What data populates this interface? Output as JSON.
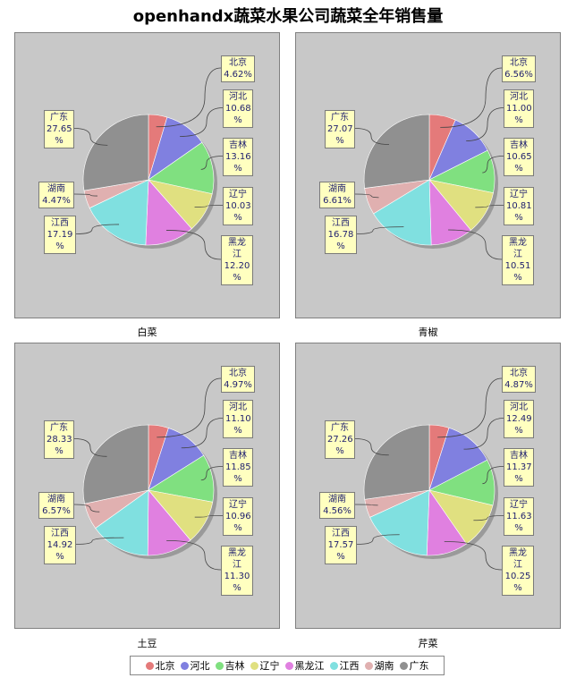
{
  "title": "openhandx蔬菜水果公司蔬菜全年销售量",
  "legend": {
    "entries": [
      {
        "label": "北京",
        "color": "#e47a7a"
      },
      {
        "label": "河北",
        "color": "#8080e0"
      },
      {
        "label": "吉林",
        "color": "#80e080"
      },
      {
        "label": "辽宁",
        "color": "#e0e080"
      },
      {
        "label": "黑龙江",
        "color": "#e080e0"
      },
      {
        "label": "江西",
        "color": "#80e0e0"
      },
      {
        "label": "湖南",
        "color": "#e0b0b0"
      },
      {
        "label": "广东",
        "color": "#909090"
      }
    ]
  },
  "chart_data": [
    {
      "type": "pie",
      "title": "白菜",
      "categories": [
        "北京",
        "河北",
        "吉林",
        "辽宁",
        "黑龙江",
        "江西",
        "湖南",
        "广东"
      ],
      "values": [
        4.62,
        10.68,
        13.16,
        10.03,
        12.2,
        17.19,
        4.47,
        27.65
      ],
      "labels": [
        [
          "北京",
          "4.62%"
        ],
        [
          "河北",
          "10.68",
          "%"
        ],
        [
          "吉林",
          "13.16",
          "%"
        ],
        [
          "辽宁",
          "10.03",
          "%"
        ],
        [
          "黑龙",
          "江",
          "12.20",
          "%"
        ],
        [
          "江西",
          "17.19",
          "%"
        ],
        [
          "湖南",
          "4.47%"
        ],
        [
          "广东",
          "27.65",
          "%"
        ]
      ]
    },
    {
      "type": "pie",
      "title": "青椒",
      "categories": [
        "北京",
        "河北",
        "吉林",
        "辽宁",
        "黑龙江",
        "江西",
        "湖南",
        "广东"
      ],
      "values": [
        6.56,
        11.0,
        10.65,
        10.81,
        10.51,
        16.78,
        6.61,
        27.07
      ],
      "labels": [
        [
          "北京",
          "6.56%"
        ],
        [
          "河北",
          "11.00",
          "%"
        ],
        [
          "吉林",
          "10.65",
          "%"
        ],
        [
          "辽宁",
          "10.81",
          "%"
        ],
        [
          "黑龙",
          "江",
          "10.51",
          "%"
        ],
        [
          "江西",
          "16.78",
          "%"
        ],
        [
          "湖南",
          "6.61%"
        ],
        [
          "广东",
          "27.07",
          "%"
        ]
      ]
    },
    {
      "type": "pie",
      "title": "土豆",
      "categories": [
        "北京",
        "河北",
        "吉林",
        "辽宁",
        "黑龙江",
        "江西",
        "湖南",
        "广东"
      ],
      "values": [
        4.97,
        11.1,
        11.85,
        10.96,
        11.3,
        14.92,
        6.57,
        28.33
      ],
      "labels": [
        [
          "北京",
          "4.97%"
        ],
        [
          "河北",
          "11.10",
          "%"
        ],
        [
          "吉林",
          "11.85",
          "%"
        ],
        [
          "辽宁",
          "10.96",
          "%"
        ],
        [
          "黑龙",
          "江",
          "11.30",
          "%"
        ],
        [
          "江西",
          "14.92",
          "%"
        ],
        [
          "湖南",
          "6.57%"
        ],
        [
          "广东",
          "28.33",
          "%"
        ]
      ]
    },
    {
      "type": "pie",
      "title": "芹菜",
      "categories": [
        "北京",
        "河北",
        "吉林",
        "辽宁",
        "黑龙江",
        "江西",
        "湖南",
        "广东"
      ],
      "values": [
        4.87,
        12.49,
        11.37,
        11.63,
        10.25,
        17.57,
        4.56,
        27.26
      ],
      "labels": [
        [
          "北京",
          "4.87%"
        ],
        [
          "河北",
          "12.49",
          "%"
        ],
        [
          "吉林",
          "11.37",
          "%"
        ],
        [
          "辽宁",
          "11.63",
          "%"
        ],
        [
          "黑龙",
          "江",
          "10.25",
          "%"
        ],
        [
          "江西",
          "17.57",
          "%"
        ],
        [
          "湖南",
          "4.56%"
        ],
        [
          "广东",
          "27.26",
          "%"
        ]
      ]
    }
  ]
}
